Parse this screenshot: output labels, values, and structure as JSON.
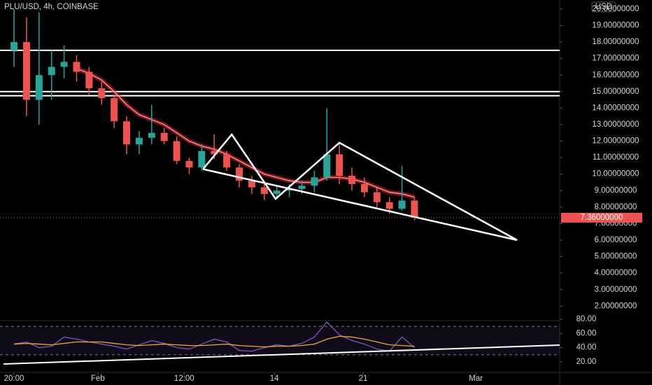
{
  "chart_data": [
    {
      "type": "candlestick",
      "title": "PLU/USD, 4h, COINBASE",
      "axis_unit": "USD",
      "x": [
        0,
        1,
        2,
        3,
        4,
        5,
        6,
        7,
        8,
        9,
        10,
        11,
        12,
        13,
        14,
        15,
        16,
        17,
        18,
        19,
        20,
        21,
        22,
        23,
        24,
        25,
        26,
        27,
        28,
        29,
        30,
        31,
        32
      ],
      "open": [
        17.5,
        18,
        14.5,
        16,
        16.5,
        16.8,
        16.2,
        15.2,
        14.6,
        13.2,
        11.8,
        12.2,
        12.5,
        12.0,
        10.8,
        10.4,
        11.4,
        11.2,
        10.4,
        9.6,
        9.2,
        8.8,
        9.0,
        9.1,
        9.3,
        9.8,
        11.2,
        9.9,
        9.4,
        8.9,
        8.3,
        7.9,
        8.4
      ],
      "high": [
        20,
        19.5,
        19.8,
        17.5,
        17.8,
        17.2,
        16.5,
        15.6,
        14.8,
        13.5,
        12.6,
        14.2,
        12.8,
        12.3,
        11.0,
        11.8,
        12.4,
        11.4,
        10.6,
        9.9,
        9.4,
        9.3,
        9.4,
        9.6,
        10.2,
        14.0,
        11.8,
        10.4,
        9.8,
        9.2,
        8.6,
        10.5,
        8.6
      ],
      "low": [
        16.5,
        13.5,
        13,
        14.5,
        15.8,
        15.6,
        14.8,
        14.2,
        12.8,
        11.2,
        11.2,
        11.8,
        11.8,
        10.6,
        10.0,
        10.2,
        10.9,
        10.2,
        9.2,
        8.8,
        8.4,
        8.5,
        8.6,
        8.8,
        8.9,
        9.6,
        9.4,
        9.0,
        8.6,
        8.0,
        7.6,
        7.8,
        7.2
      ],
      "close": [
        18,
        14.5,
        16,
        16.5,
        16.8,
        16.2,
        15.2,
        14.6,
        13.2,
        11.8,
        12.2,
        12.5,
        12.0,
        10.8,
        10.4,
        11.4,
        11.2,
        10.4,
        9.6,
        9.2,
        8.8,
        9.0,
        9.1,
        9.3,
        9.8,
        11.2,
        9.9,
        9.4,
        8.9,
        8.3,
        7.9,
        8.4,
        7.36
      ],
      "up_color": "#26a69a",
      "down_color": "#ef5350",
      "ema": {
        "color": "#e91e63",
        "values": [
          null,
          null,
          null,
          null,
          null,
          16.4,
          16.1,
          15.7,
          15.0,
          14.2,
          13.6,
          13.3,
          13.0,
          12.5,
          12.0,
          11.7,
          11.5,
          11.2,
          10.8,
          10.4,
          10.0,
          9.8,
          9.6,
          9.5,
          9.5,
          9.8,
          9.8,
          9.7,
          9.5,
          9.2,
          8.9,
          8.8,
          8.6
        ]
      },
      "hlines": [
        17.5,
        15.0,
        14.75
      ],
      "drawings": [
        [
          [
            15.1,
            10.3
          ],
          [
            17.4,
            12.4
          ],
          [
            20.9,
            8.5
          ],
          [
            26,
            11.9
          ],
          [
            40.2,
            6.0
          ]
        ],
        [
          [
            15.1,
            10.3
          ],
          [
            40.2,
            6.0
          ]
        ]
      ],
      "last_price": {
        "value": 7.36,
        "label": "7.36000000"
      },
      "xlim": [
        -1.12,
        43.6
      ],
      "xticks": [
        {
          "value": 0,
          "label": "20:00"
        },
        {
          "value": 6.7,
          "label": "Feb"
        },
        {
          "value": 13.6,
          "label": "12:00"
        },
        {
          "value": 20.8,
          "label": "14"
        },
        {
          "value": 27.9,
          "label": "21"
        },
        {
          "value": 36.9,
          "label": "Mar"
        }
      ],
      "ylim": [
        1.25,
        20.55
      ],
      "yticks": [
        {
          "value": 20,
          "label": "20.00000000"
        },
        {
          "value": 19,
          "label": "19.00000000"
        },
        {
          "value": 18,
          "label": "18.00000000"
        },
        {
          "value": 17,
          "label": "17.00000000"
        },
        {
          "value": 16,
          "label": "16.00000000"
        },
        {
          "value": 15,
          "label": "15.00000000"
        },
        {
          "value": 14,
          "label": "14.00000000"
        },
        {
          "value": 13,
          "label": "13.00000000"
        },
        {
          "value": 12,
          "label": "12.00000000"
        },
        {
          "value": 11,
          "label": "11.00000000"
        },
        {
          "value": 10,
          "label": "10.00000000"
        },
        {
          "value": 9,
          "label": "9.00000000"
        },
        {
          "value": 8,
          "label": "8.00000000"
        },
        {
          "value": 7,
          "label": "7.00000000"
        },
        {
          "value": 6,
          "label": "6.00000000"
        },
        {
          "value": 5,
          "label": "5.00000000"
        },
        {
          "value": 4,
          "label": "4.00000000"
        },
        {
          "value": 3,
          "label": "3.00000000"
        },
        {
          "value": 2,
          "label": "2.00000000"
        }
      ]
    },
    {
      "type": "line",
      "series": [
        {
          "color": "#7e57c2",
          "values": [
            45,
            48,
            40,
            42,
            55,
            52,
            48,
            45,
            42,
            38,
            44,
            50,
            46,
            40,
            38,
            45,
            52,
            48,
            36,
            35,
            40,
            44,
            42,
            46,
            55,
            76,
            58,
            50,
            45,
            38,
            35,
            55,
            40
          ]
        },
        {
          "color": "#f5a623",
          "values": [
            45,
            46,
            45,
            44,
            46,
            48,
            48,
            48,
            46,
            44,
            43,
            44,
            45,
            44,
            43,
            43,
            44,
            45,
            43,
            42,
            41,
            42,
            42,
            43,
            45,
            52,
            56,
            55,
            52,
            48,
            44,
            43,
            42
          ]
        }
      ],
      "band": [
        70,
        30
      ],
      "trendline": [
        [
          -0.84,
          17
        ],
        [
          43.6,
          43.6
        ]
      ],
      "ylim": [
        16,
        84
      ],
      "yticks": [
        {
          "value": 80,
          "label": "80.00"
        },
        {
          "value": 60,
          "label": "60.00"
        },
        {
          "value": 40,
          "label": "40.00"
        },
        {
          "value": 20,
          "label": "20.00"
        }
      ]
    }
  ]
}
